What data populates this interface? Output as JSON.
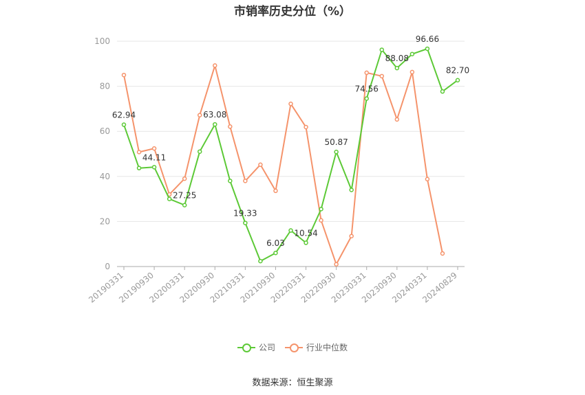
{
  "chart_data": {
    "type": "line",
    "title": "市销率历史分位（%）",
    "xlabel": "",
    "ylabel": "",
    "ylim": [
      0,
      100
    ],
    "yticks": [
      0,
      20,
      40,
      60,
      80,
      100
    ],
    "grid": true,
    "legend_position": "bottom",
    "x": [
      "20190331",
      "20190630",
      "20190930",
      "20191231",
      "20200331",
      "20200630",
      "20200930",
      "20201231",
      "20210331",
      "20210630",
      "20210930",
      "20211231",
      "20220331",
      "20220630",
      "20220930",
      "20221231",
      "20230331",
      "20230630",
      "20230930",
      "20231231",
      "20240331",
      "20240630",
      "20240829"
    ],
    "xtick_labels": [
      "20190331",
      "20190930",
      "20200331",
      "20200930",
      "20210331",
      "20210930",
      "20220331",
      "20220930",
      "20230331",
      "20230930",
      "20240331",
      "20240829"
    ],
    "series": [
      {
        "name": "公司",
        "color": "#5cc936",
        "values": [
          62.94,
          43.7,
          44.11,
          30.0,
          27.25,
          51.0,
          63.08,
          38.0,
          19.33,
          2.4,
          6.03,
          16.0,
          10.54,
          25.5,
          50.87,
          34.0,
          74.56,
          96.2,
          88.08,
          94.3,
          96.66,
          77.7,
          82.7
        ],
        "labeled_points": [
          {
            "index": 0,
            "label": "62.94"
          },
          {
            "index": 2,
            "label": "44.11"
          },
          {
            "index": 4,
            "label": "27.25"
          },
          {
            "index": 6,
            "label": "63.08"
          },
          {
            "index": 8,
            "label": "19.33"
          },
          {
            "index": 10,
            "label": "6.03"
          },
          {
            "index": 12,
            "label": "10.54"
          },
          {
            "index": 14,
            "label": "50.87"
          },
          {
            "index": 16,
            "label": "74.56"
          },
          {
            "index": 18,
            "label": "88.08"
          },
          {
            "index": 20,
            "label": "96.66"
          },
          {
            "index": 22,
            "label": "82.70"
          }
        ]
      },
      {
        "name": "行业中位数",
        "color": "#f5936b",
        "values": [
          85.0,
          50.8,
          52.4,
          32.0,
          39.0,
          67.2,
          89.2,
          62.1,
          38.0,
          45.2,
          33.6,
          72.2,
          61.9,
          20.5,
          1.0,
          13.5,
          86.0,
          84.5,
          65.3,
          86.3,
          38.8,
          5.8,
          null
        ]
      }
    ]
  },
  "source": "数据来源：恒生聚源"
}
